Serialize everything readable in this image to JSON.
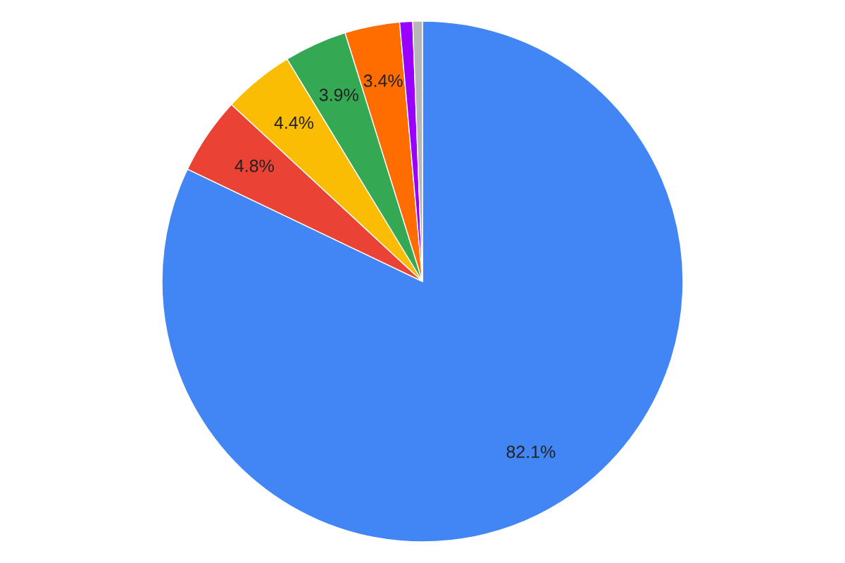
{
  "chart_data": {
    "type": "pie",
    "categories": [
      null,
      null,
      null,
      null,
      null,
      null,
      null
    ],
    "values": [
      82.1,
      4.8,
      4.4,
      3.9,
      3.4,
      0.8,
      0.6
    ],
    "value_labels": [
      "82.1%",
      "4.8%",
      "4.4%",
      "3.9%",
      "3.4%",
      null,
      null
    ],
    "colors": [
      "#4285f4",
      "#ea4335",
      "#fbbc04",
      "#34a853",
      "#ff6d01",
      "#9900ff",
      "#b7b7b7"
    ]
  }
}
